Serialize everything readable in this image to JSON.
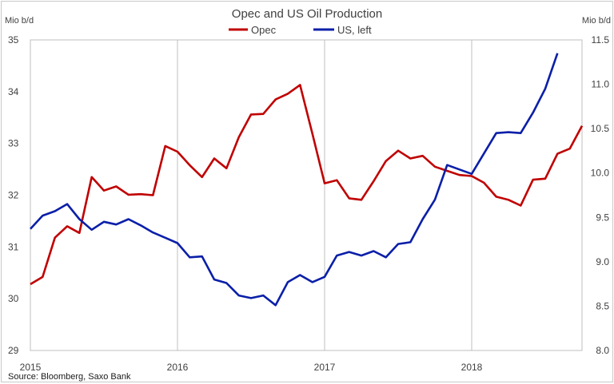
{
  "chart_data": {
    "type": "line",
    "title": "Opec and US Oil Production",
    "left_axis": {
      "unit": "Mio b/d",
      "ylim": [
        29,
        35
      ],
      "ticks": [
        "29",
        "30",
        "31",
        "32",
        "33",
        "34",
        "35"
      ]
    },
    "right_axis": {
      "unit": "Mio b/d",
      "ylim": [
        8.0,
        11.5
      ],
      "ticks": [
        "8.0",
        "8.5",
        "9.0",
        "9.5",
        "10.0",
        "10.5",
        "11.0",
        "11.5"
      ]
    },
    "x_ticks": [
      "2015",
      "2016",
      "2017",
      "2018"
    ],
    "x_tick_values": [
      2015.0,
      2016.0,
      2017.0,
      2018.0
    ],
    "xlim": [
      2015.0,
      2018.75
    ],
    "grid": "vertical at year boundaries",
    "legend_position": "top-center",
    "source": "Source: Bloomberg, Saxo Bank",
    "series": [
      {
        "name": "Opec",
        "axis": "left",
        "color": "#c00000",
        "x": [
          2015.0,
          2015.083,
          2015.167,
          2015.25,
          2015.333,
          2015.417,
          2015.5,
          2015.583,
          2015.667,
          2015.75,
          2015.833,
          2015.917,
          2016.0,
          2016.083,
          2016.167,
          2016.25,
          2016.333,
          2016.417,
          2016.5,
          2016.583,
          2016.667,
          2016.75,
          2016.833,
          2016.917,
          2017.0,
          2017.083,
          2017.167,
          2017.25,
          2017.333,
          2017.417,
          2017.5,
          2017.583,
          2017.667,
          2017.75,
          2017.833,
          2017.917,
          2018.0,
          2018.083,
          2018.167,
          2018.25,
          2018.333,
          2018.417,
          2018.5,
          2018.583,
          2018.667,
          2018.75
        ],
        "values": [
          30.28,
          30.42,
          31.18,
          31.4,
          31.27,
          32.35,
          32.09,
          32.17,
          32.01,
          32.02,
          32.0,
          32.95,
          32.84,
          32.58,
          32.35,
          32.71,
          32.52,
          33.12,
          33.56,
          33.57,
          33.85,
          33.96,
          34.13,
          33.19,
          32.23,
          32.29,
          31.94,
          31.91,
          32.27,
          32.66,
          32.86,
          32.71,
          32.76,
          32.55,
          32.47,
          32.39,
          32.37,
          32.24,
          31.97,
          31.91,
          31.8,
          32.3,
          32.32,
          32.8,
          32.9,
          33.34
        ]
      },
      {
        "name": "US, left",
        "axis": "right",
        "color": "#0a1fa8",
        "x": [
          2015.0,
          2015.083,
          2015.167,
          2015.25,
          2015.333,
          2015.417,
          2015.5,
          2015.583,
          2015.667,
          2015.75,
          2015.833,
          2015.917,
          2016.0,
          2016.083,
          2016.167,
          2016.25,
          2016.333,
          2016.417,
          2016.5,
          2016.583,
          2016.667,
          2016.75,
          2016.833,
          2016.917,
          2017.0,
          2017.083,
          2017.167,
          2017.25,
          2017.333,
          2017.417,
          2017.5,
          2017.583,
          2017.667,
          2017.75,
          2017.833,
          2017.917,
          2018.0,
          2018.083,
          2018.167,
          2018.25,
          2018.333,
          2018.417,
          2018.5,
          2018.583
        ],
        "values": [
          9.37,
          9.52,
          9.57,
          9.65,
          9.48,
          9.36,
          9.45,
          9.42,
          9.48,
          9.41,
          9.33,
          9.27,
          9.21,
          9.05,
          9.06,
          8.8,
          8.76,
          8.62,
          8.59,
          8.62,
          8.51,
          8.77,
          8.85,
          8.77,
          8.83,
          9.07,
          9.11,
          9.07,
          9.12,
          9.05,
          9.2,
          9.22,
          9.48,
          9.7,
          10.09,
          10.04,
          9.99,
          10.22,
          10.45,
          10.46,
          10.45,
          10.68,
          10.95,
          11.35
        ]
      }
    ]
  }
}
